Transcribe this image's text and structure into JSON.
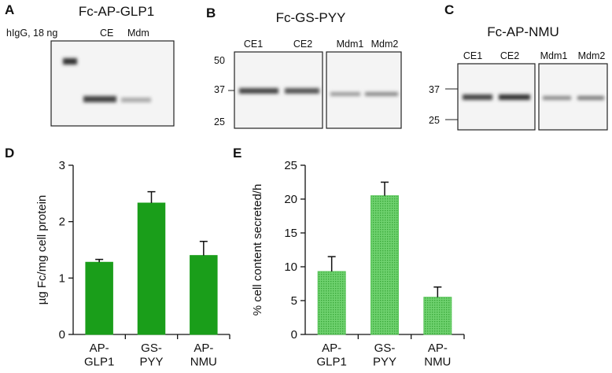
{
  "panels": {
    "A": {
      "label": "A",
      "title": "Fc-AP-GLP1",
      "lanes": [
        "hIgG, 18 ng",
        "CE",
        "Mdm"
      ]
    },
    "B": {
      "label": "B",
      "title": "Fc-GS-PYY",
      "lanes": [
        "CE1",
        "CE2",
        "Mdm1",
        "Mdm2"
      ],
      "markers": [
        50,
        37,
        25
      ]
    },
    "C": {
      "label": "C",
      "title": "Fc-AP-NMU",
      "lanes": [
        "CE1",
        "CE2",
        "Mdm1",
        "Mdm2"
      ],
      "markers": [
        37,
        25
      ]
    }
  },
  "chart_data": [
    {
      "label": "D",
      "type": "bar",
      "ylabel": "µg Fc/mg cell protein",
      "categories": [
        "AP-\nGLP1",
        "GS-\nPYY",
        "AP-\nNMU"
      ],
      "values": [
        1.28,
        2.33,
        1.4
      ],
      "errors": [
        0.05,
        0.2,
        0.25
      ],
      "color": "#1a9e1a",
      "ylim": [
        0,
        3
      ],
      "yticks": [
        0,
        1,
        2,
        3
      ]
    },
    {
      "label": "E",
      "type": "bar",
      "ylabel": "% cell content secreted/h",
      "categories": [
        "AP-\nGLP1",
        "GS-\nPYY",
        "AP-\nNMU"
      ],
      "values": [
        9.3,
        20.5,
        5.5
      ],
      "errors": [
        2.2,
        2.0,
        1.5
      ],
      "color": "#5cc65c",
      "ylim": [
        0,
        25
      ],
      "yticks": [
        0,
        5,
        10,
        15,
        20,
        25
      ]
    }
  ]
}
